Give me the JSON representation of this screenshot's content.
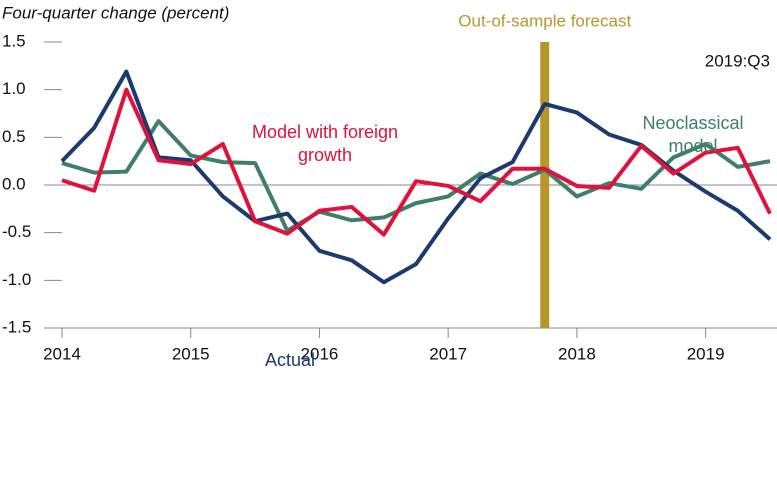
{
  "chart_data": {
    "type": "line",
    "y_label": "Four-quarter change (percent)",
    "annotation": "2019:Q3",
    "forecast": {
      "x": 2017.75,
      "label": "Out-of-sample forecast",
      "color": "#b8962e"
    },
    "x": [
      2014,
      2014.25,
      2014.5,
      2014.75,
      2015,
      2015.25,
      2015.5,
      2015.75,
      2016,
      2016.25,
      2016.5,
      2016.75,
      2017,
      2017.25,
      2017.5,
      2017.75,
      2018,
      2018.25,
      2018.5,
      2018.75,
      2019,
      2019.25,
      2019.5
    ],
    "series": [
      {
        "name": "Neoclassical model",
        "color": "#3f7f6a",
        "values": [
          0.23,
          0.13,
          0.14,
          0.67,
          0.31,
          0.24,
          0.23,
          -0.48,
          -0.28,
          -0.37,
          -0.34,
          -0.19,
          -0.12,
          0.12,
          0.01,
          0.16,
          -0.12,
          0.02,
          -0.04,
          0.29,
          0.43,
          0.19,
          0.25
        ]
      },
      {
        "name": "Actual",
        "color": "#1c3a6e",
        "values": [
          0.25,
          0.6,
          1.19,
          0.29,
          0.26,
          -0.12,
          -0.38,
          -0.3,
          -0.69,
          -0.79,
          -1.02,
          -0.83,
          -0.35,
          0.07,
          0.24,
          0.85,
          0.76,
          0.53,
          0.42,
          0.15,
          -0.07,
          -0.27,
          -0.57
        ]
      },
      {
        "name": "Model with foreign growth",
        "color": "#e0123c",
        "values": [
          0.05,
          -0.06,
          1.0,
          0.26,
          0.22,
          0.43,
          -0.38,
          -0.51,
          -0.27,
          -0.23,
          -0.52,
          0.04,
          -0.01,
          -0.17,
          0.17,
          0.17,
          -0.01,
          -0.03,
          0.41,
          0.12,
          0.34,
          0.39,
          -0.3
        ]
      }
    ],
    "xlim": [
      2014,
      2019.5
    ],
    "xticks": [
      2014,
      2015,
      2016,
      2017,
      2018,
      2019
    ],
    "ylim": [
      -1.5,
      1.5
    ],
    "yticks": [
      1.5,
      {
        "value": 1.0,
        "label": "1.0"
      },
      0.5,
      {
        "value": 0.0,
        "label": "0.0"
      },
      -0.5,
      {
        "value": -1.0,
        "label": "-1.0"
      },
      -1.5
    ]
  }
}
